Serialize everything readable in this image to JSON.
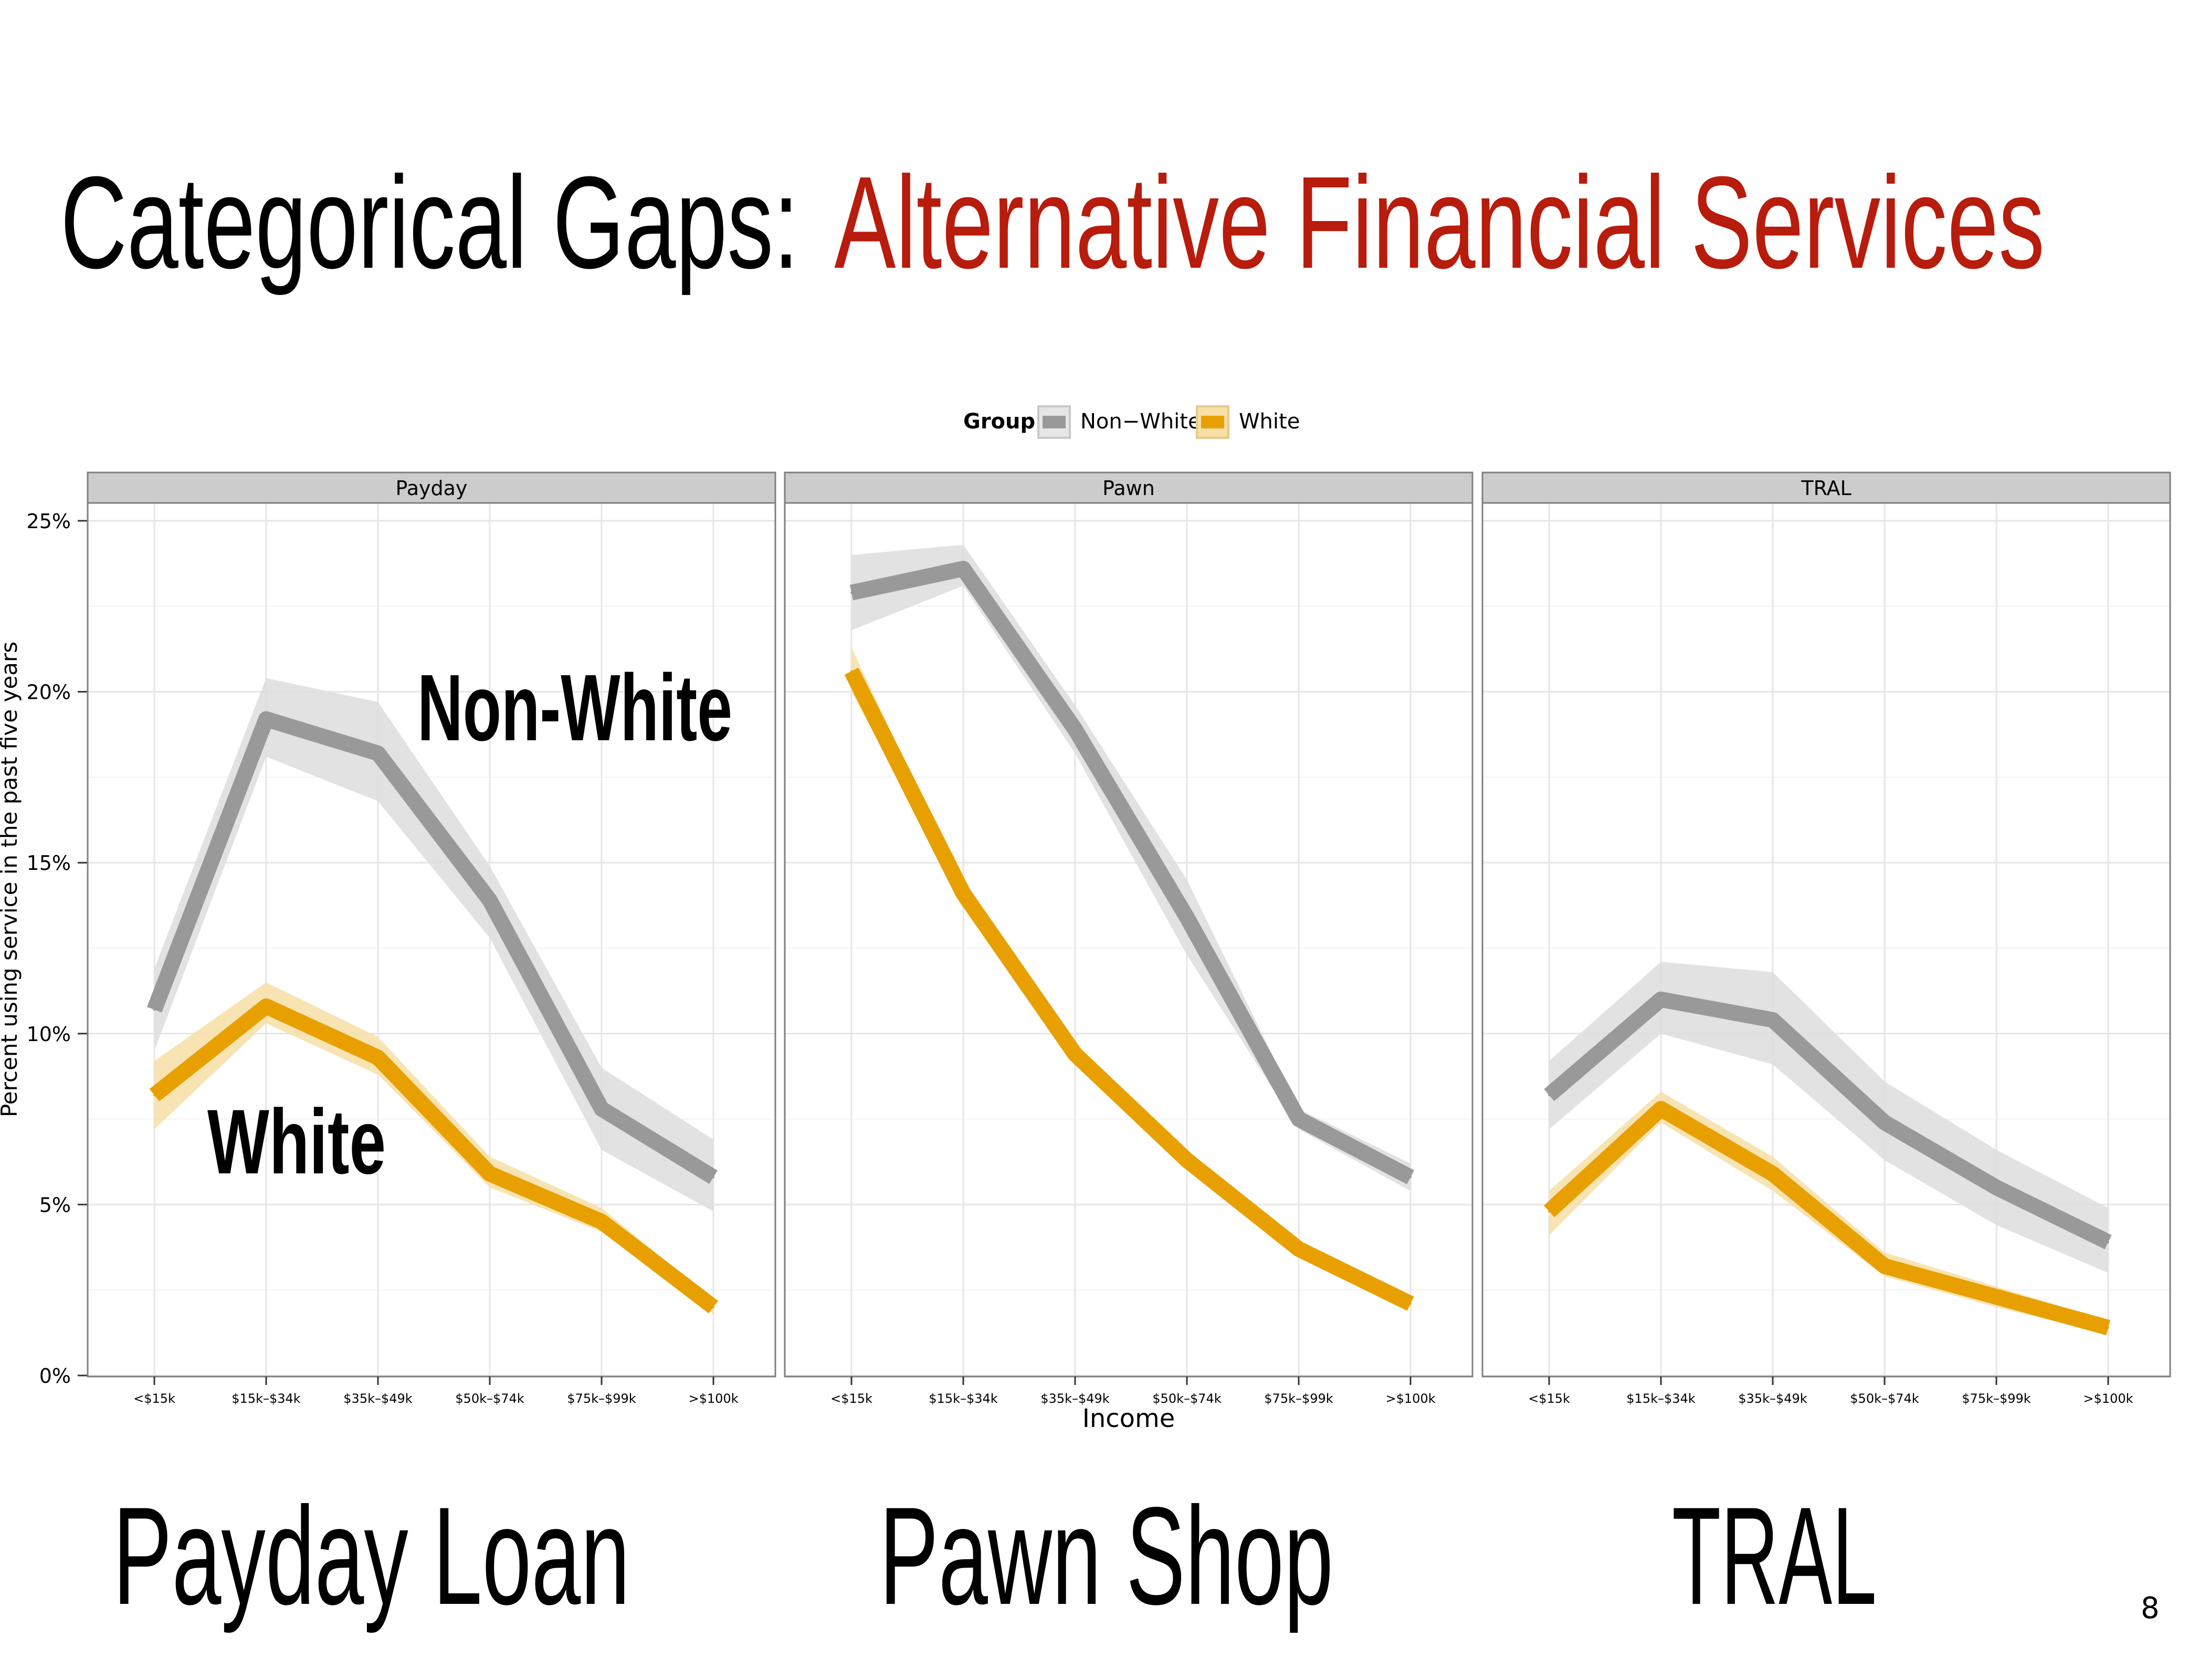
{
  "slide": {
    "title_part1": "Categorical Gaps:",
    "title_part2": "Alternative Financial Services",
    "title_color_1": "#000000",
    "title_color_2": "#B71C0C",
    "page_number": "8"
  },
  "bottom_labels": [
    "Payday Loan",
    "Pawn Shop",
    "TRAL"
  ],
  "annotations": {
    "non_white": "Non-White",
    "white": "White"
  },
  "chart_data": {
    "type": "line",
    "facets": [
      "Payday",
      "Pawn",
      "TRAL"
    ],
    "categories": [
      "<$15k",
      "$15k–$34k",
      "$35k–$49k",
      "$50k–$74k",
      "$75k–$99k",
      ">$100k"
    ],
    "xlabel": "Income",
    "ylabel": "Percent using service in the past five years",
    "ylim": [
      0,
      25
    ],
    "yticks": [
      "0%",
      "5%",
      "10%",
      "15%",
      "20%",
      "25%"
    ],
    "grid": true,
    "legend": {
      "title": "Group",
      "position": "top",
      "entries": [
        "Non−White",
        "White"
      ]
    },
    "series": [
      {
        "name": "Non−White",
        "color": "#999999",
        "band_color": "#DDDDDD",
        "facets": {
          "Payday": {
            "values": [
              10.7,
              19.2,
              18.2,
              13.9,
              7.8,
              5.8
            ],
            "lower": [
              9.5,
              18.1,
              16.8,
              12.8,
              6.6,
              4.8
            ],
            "upper": [
              11.9,
              20.4,
              19.7,
              14.9,
              9.0,
              6.9
            ]
          },
          "Pawn": {
            "values": [
              22.9,
              23.6,
              18.9,
              13.4,
              7.5,
              5.8
            ],
            "lower": [
              21.8,
              23.1,
              18.2,
              12.3,
              7.2,
              5.4
            ],
            "upper": [
              24.0,
              24.3,
              19.6,
              14.5,
              7.8,
              6.2
            ]
          },
          "TRAL": {
            "values": [
              8.2,
              11.0,
              10.4,
              7.4,
              5.5,
              3.9
            ],
            "lower": [
              7.2,
              10.0,
              9.1,
              6.3,
              4.4,
              3.0
            ],
            "upper": [
              9.2,
              12.1,
              11.8,
              8.6,
              6.6,
              4.9
            ]
          }
        }
      },
      {
        "name": "White",
        "color": "#E8A000",
        "band_color": "#F7DFA6",
        "facets": {
          "Payday": {
            "values": [
              8.2,
              10.8,
              9.3,
              5.9,
              4.5,
              2.0
            ],
            "lower": [
              7.2,
              10.3,
              8.8,
              5.5,
              4.2,
              1.8
            ],
            "upper": [
              9.2,
              11.5,
              9.9,
              6.4,
              4.9,
              2.2
            ]
          },
          "Pawn": {
            "values": [
              20.6,
              14.1,
              9.4,
              6.3,
              3.7,
              2.1
            ],
            "lower": [
              20.0,
              13.9,
              9.2,
              6.1,
              3.6,
              2.0
            ],
            "upper": [
              21.3,
              14.3,
              9.6,
              6.5,
              3.8,
              2.2
            ]
          },
          "TRAL": {
            "values": [
              4.8,
              7.8,
              5.9,
              3.2,
              2.3,
              1.4
            ],
            "lower": [
              4.1,
              7.4,
              5.4,
              2.9,
              2.0,
              1.2
            ],
            "upper": [
              5.4,
              8.3,
              6.4,
              3.6,
              2.6,
              1.6
            ]
          }
        }
      }
    ]
  }
}
